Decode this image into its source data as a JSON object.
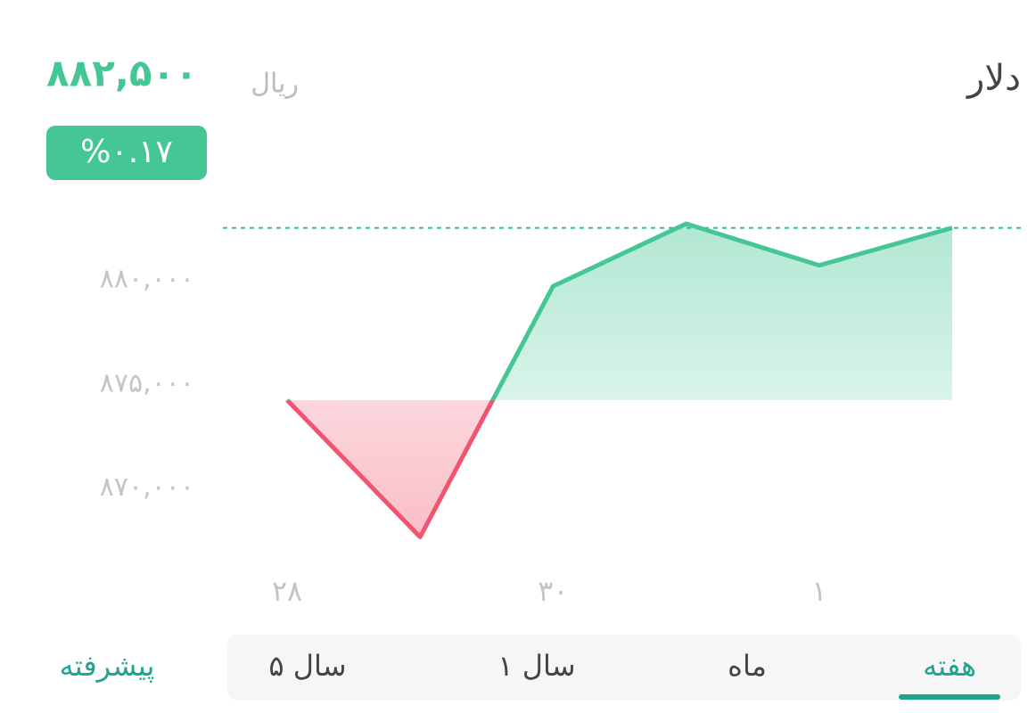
{
  "header": {
    "title": "دلار",
    "price": "۸۸۲,۵۰۰",
    "unit": "ریال",
    "change": "%۰.۱۷"
  },
  "chart_data": {
    "type": "line",
    "categories": [
      "۲۸",
      null,
      "۳۰",
      null,
      "۱",
      null
    ],
    "series": [
      {
        "name": "دلار",
        "color": "#45c795",
        "down_color": "#f0546e",
        "values": [
          874230,
          867650,
          879700,
          882700,
          880700,
          882500
        ]
      }
    ],
    "ylim": [
      866900,
      883600
    ],
    "yticks": [
      {
        "value": 870000,
        "label": "۸۷۰,۰۰۰"
      },
      {
        "value": 875000,
        "label": "۸۷۵,۰۰۰"
      },
      {
        "value": 880000,
        "label": "۸۸۰,۰۰۰"
      }
    ],
    "grid": false
  },
  "tabs": {
    "items": [
      "هفته",
      "ماه",
      "۱ سال",
      "۵ سال"
    ],
    "active": 0,
    "advanced": "پیشرفته"
  }
}
